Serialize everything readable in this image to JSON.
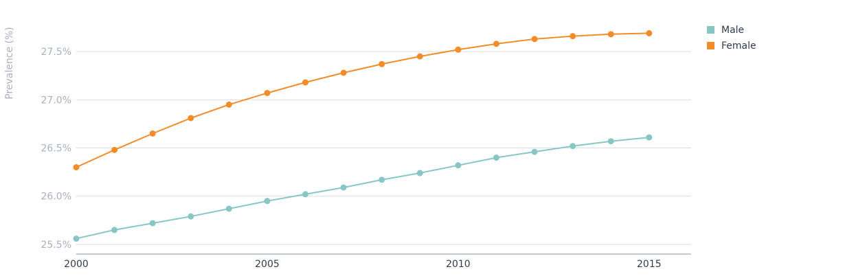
{
  "chart_data": {
    "type": "line",
    "ylabel": "Prevalence (%)",
    "x": [
      2000,
      2001,
      2002,
      2003,
      2004,
      2005,
      2006,
      2007,
      2008,
      2009,
      2010,
      2011,
      2012,
      2013,
      2014,
      2015
    ],
    "x_ticks": [
      2000,
      2005,
      2010,
      2015
    ],
    "x_tick_labels": [
      "2000",
      "2005",
      "2010",
      "2015"
    ],
    "y_ticks": [
      25.5,
      26.0,
      26.5,
      27.0,
      27.5
    ],
    "y_tick_labels": [
      "25.5%",
      "26.0%",
      "26.5%",
      "27.0%",
      "27.5%"
    ],
    "ylim": [
      25.4,
      27.75
    ],
    "xlim": [
      2000,
      2016.1
    ],
    "grid": true,
    "legend_position": "top-right",
    "series": [
      {
        "name": "Male",
        "color": "#88c6c6",
        "values": [
          25.56,
          25.65,
          25.72,
          25.79,
          25.87,
          25.95,
          26.02,
          26.09,
          26.17,
          26.24,
          26.32,
          26.4,
          26.46,
          26.52,
          26.57,
          26.61
        ]
      },
      {
        "name": "Female",
        "color": "#f28c28",
        "values": [
          26.3,
          26.48,
          26.65,
          26.81,
          26.95,
          27.07,
          27.18,
          27.28,
          27.37,
          27.45,
          27.52,
          27.58,
          27.63,
          27.66,
          27.68,
          27.69
        ]
      }
    ]
  }
}
